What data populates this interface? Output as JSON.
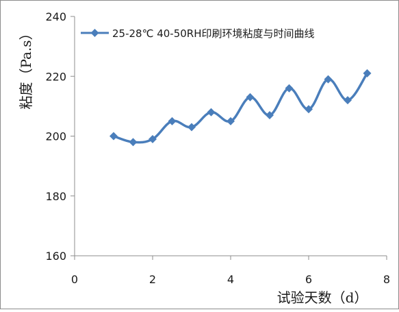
{
  "chart_data": {
    "type": "line",
    "title": "",
    "xlabel": "试验天数（d）",
    "ylabel": "粘度（Pa.s）",
    "xlim": [
      0,
      8
    ],
    "ylim": [
      160,
      240
    ],
    "x_ticks": [
      "0",
      "2",
      "4",
      "6",
      "8"
    ],
    "y_ticks": [
      "160",
      "180",
      "200",
      "220",
      "240"
    ],
    "grid": false,
    "legend_position": "top-right",
    "series": [
      {
        "name": "25-28℃ 40-50RH印刷环境粘度与时间曲线",
        "color": "#4a7ebb",
        "marker": "diamond",
        "x": [
          1,
          1.5,
          2,
          2.5,
          3,
          3.5,
          4,
          4.5,
          5,
          5.5,
          6,
          6.5,
          7,
          7.5
        ],
        "y": [
          200,
          198,
          199,
          205,
          203,
          208,
          205,
          213,
          207,
          216,
          209,
          219,
          212,
          221
        ]
      }
    ]
  }
}
